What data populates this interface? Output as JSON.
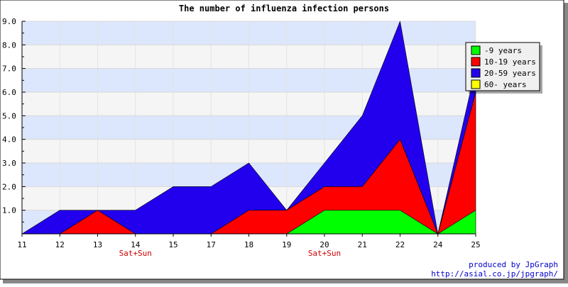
{
  "chart_data": {
    "type": "area",
    "stacked": true,
    "title": "The number of influenza infection persons",
    "xlabel": "",
    "ylabel": "",
    "categories": [
      "11",
      "12",
      "13",
      "14",
      "15",
      "17",
      "18",
      "19",
      "20",
      "21",
      "22",
      "24",
      "25"
    ],
    "x_sublabels": [
      "",
      "",
      "",
      "Sat+Sun",
      "",
      "",
      "",
      "",
      "Sat+Sun",
      "",
      "",
      "",
      ""
    ],
    "ylim": [
      0,
      9
    ],
    "yticks": [
      "1.0",
      "2.0",
      "3.0",
      "4.0",
      "5.0",
      "6.0",
      "7.0",
      "8.0",
      "9.0"
    ],
    "grid": true,
    "legend_position": "top-right",
    "series": [
      {
        "name": "-9 years",
        "color": "#00ff00",
        "values": [
          0,
          0,
          0,
          0,
          0,
          0,
          0,
          0,
          1,
          1,
          1,
          0,
          1
        ]
      },
      {
        "name": "10-19 years",
        "color": "#ff0000",
        "values": [
          0,
          0,
          1,
          0,
          0,
          0,
          1,
          1,
          1,
          1,
          3,
          0,
          5
        ]
      },
      {
        "name": "20-59 years",
        "color": "#2200ee",
        "values": [
          0,
          1,
          0,
          1,
          2,
          2,
          2,
          0,
          1,
          3,
          5,
          0,
          1
        ]
      },
      {
        "name": "60- years",
        "color": "#ffff00",
        "values": [
          0,
          0,
          0,
          0,
          0,
          0,
          0,
          0,
          0,
          0,
          0,
          0,
          0
        ]
      }
    ]
  },
  "credits": {
    "line1": "produced by JpGraph",
    "line2": "http://asial.co.jp/jpgraph/"
  }
}
